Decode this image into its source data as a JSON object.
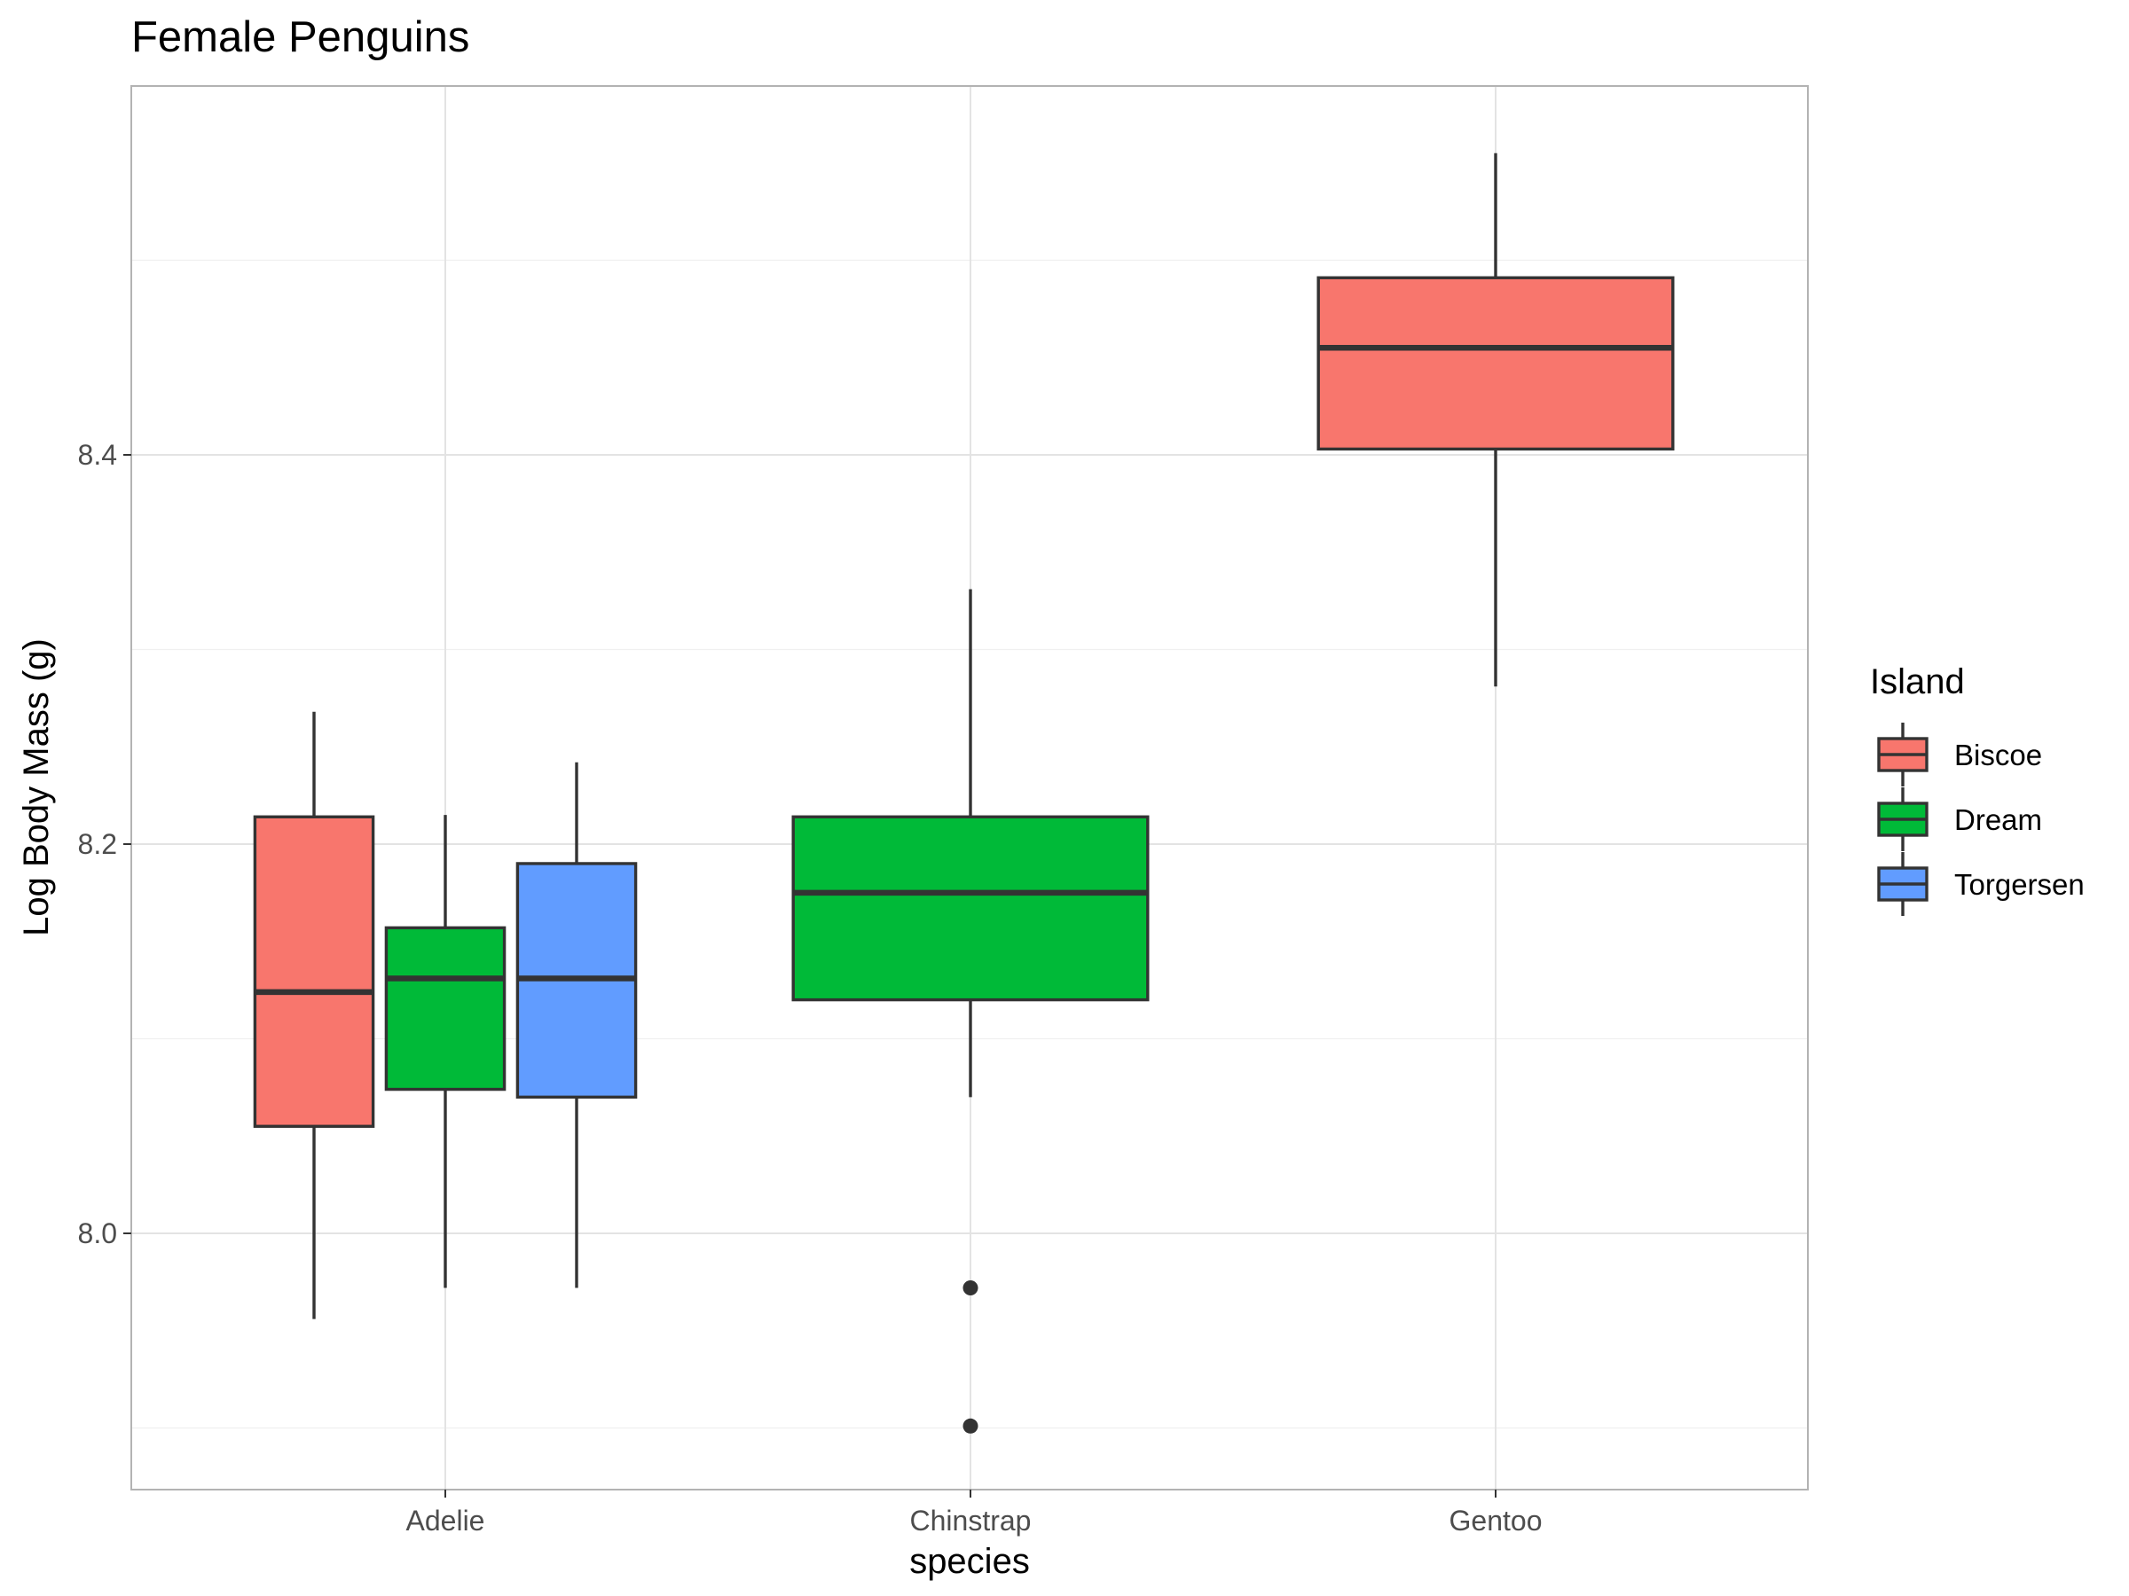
{
  "chart_data": {
    "type": "boxplot",
    "title": "Female Penguins",
    "xlabel": "species",
    "ylabel": "Log Body Mass (g)",
    "categories": [
      "Adelie",
      "Chinstrap",
      "Gentoo"
    ],
    "yticks": [
      "8.0",
      "8.2",
      "8.4"
    ],
    "ylim": [
      7.9,
      8.62
    ],
    "grid": true,
    "legend": {
      "title": "Island",
      "position": "right",
      "items": [
        {
          "name": "Biscoe",
          "color": "#F8766D"
        },
        {
          "name": "Dream",
          "color": "#00BA38"
        },
        {
          "name": "Torgersen",
          "color": "#619CFF"
        }
      ]
    },
    "boxes": [
      {
        "species": "Adelie",
        "island": "Biscoe",
        "group": 0,
        "groups": 3,
        "whisker_low": 7.956,
        "q1": 8.055,
        "median": 8.124,
        "q3": 8.214,
        "whisker_high": 8.268,
        "outliers": []
      },
      {
        "species": "Adelie",
        "island": "Dream",
        "group": 1,
        "groups": 3,
        "whisker_low": 7.972,
        "q1": 8.074,
        "median": 8.131,
        "q3": 8.157,
        "whisker_high": 8.215,
        "outliers": []
      },
      {
        "species": "Adelie",
        "island": "Torgersen",
        "group": 2,
        "groups": 3,
        "whisker_low": 7.972,
        "q1": 8.07,
        "median": 8.131,
        "q3": 8.19,
        "whisker_high": 8.242,
        "outliers": []
      },
      {
        "species": "Chinstrap",
        "island": "Dream",
        "group": 0,
        "groups": 1,
        "whisker_low": 8.07,
        "q1": 8.12,
        "median": 8.175,
        "q3": 8.214,
        "whisker_high": 8.331,
        "outliers": [
          7.972,
          7.901
        ]
      },
      {
        "species": "Gentoo",
        "island": "Biscoe",
        "group": 0,
        "groups": 1,
        "whisker_low": 8.281,
        "q1": 8.403,
        "median": 8.455,
        "q3": 8.491,
        "whisker_high": 8.555,
        "outliers": []
      }
    ]
  }
}
